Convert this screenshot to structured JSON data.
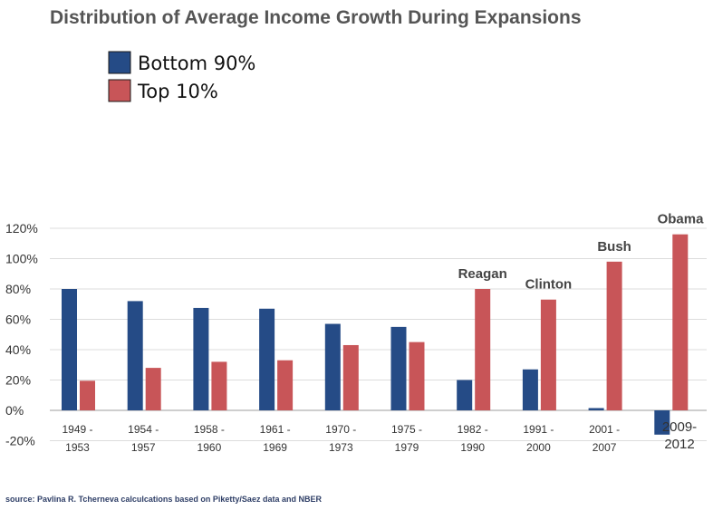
{
  "chart_data": {
    "type": "bar",
    "title": "Distribution of Average Income Growth During Expansions",
    "categories": [
      [
        "1949 -",
        "1953"
      ],
      [
        "1954 -",
        "1957"
      ],
      [
        "1958 -",
        "1960"
      ],
      [
        "1961 -",
        "1969"
      ],
      [
        "1970 -",
        "1973"
      ],
      [
        "1975 -",
        "1979"
      ],
      [
        "1982 -",
        "1990"
      ],
      [
        "1991 -",
        "2000"
      ],
      [
        "2001 -",
        "2007"
      ],
      [
        "2009-",
        "2012"
      ]
    ],
    "series": [
      {
        "name": "Bottom 90%",
        "color": "#254b86",
        "values": [
          80,
          72,
          67.5,
          67,
          57,
          55,
          20,
          27,
          1.5,
          -16
        ]
      },
      {
        "name": "Top 10%",
        "color": "#c85558",
        "values": [
          19.5,
          28,
          32,
          33,
          43,
          45,
          80,
          73,
          98,
          116
        ]
      }
    ],
    "annotations": [
      {
        "text": "Reagan",
        "category": 6
      },
      {
        "text": "Clinton",
        "category": 7
      },
      {
        "text": "Bush",
        "category": 8
      },
      {
        "text": "Obama",
        "category": 9
      }
    ],
    "yticks": [
      -20,
      0,
      20,
      40,
      60,
      80,
      100,
      120
    ],
    "ytick_labels": [
      "-20%",
      "0%",
      "20%",
      "40%",
      "60%",
      "80%",
      "100%",
      "120%"
    ],
    "ylim": [
      -20,
      120
    ],
    "xlabel": "",
    "ylabel": "",
    "grid": true,
    "legend": "top-left",
    "source": "source: Pavlina R. Tcherneva calculcations based on Piketty/Saez data and NBER"
  }
}
